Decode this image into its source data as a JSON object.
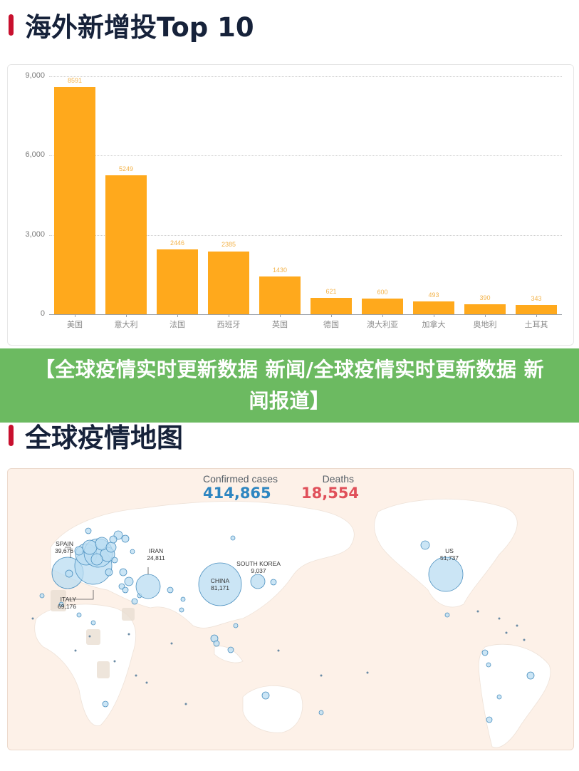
{
  "sections": {
    "top10_title": "海外新增投Top 10",
    "map_title": "全球疫情地图"
  },
  "banner": {
    "text": "【全球疫情实时更新数据 新闻/全球疫情实时更新数据 新闻报道】"
  },
  "chart_data": {
    "type": "bar",
    "title": "海外新增投Top 10",
    "categories": [
      "美国",
      "意大利",
      "法国",
      "西班牙",
      "英国",
      "德国",
      "澳大利亚",
      "加拿大",
      "奥地利",
      "土耳其"
    ],
    "values": [
      8591,
      5249,
      2446,
      2385,
      1430,
      621,
      600,
      493,
      390,
      343
    ],
    "value_labels": [
      "8591",
      "5249",
      "2446",
      "2385",
      "1430",
      "621",
      "600",
      "493",
      "390",
      "343"
    ],
    "xlabel": "",
    "ylabel": "",
    "ylim": [
      0,
      9000
    ],
    "yticks": [
      0,
      3000,
      6000,
      9000
    ],
    "ytick_labels": [
      "0",
      "3,000",
      "6,000",
      "9,000"
    ],
    "grid": true,
    "legend": null,
    "bar_color": "#ffa91c"
  },
  "map": {
    "confirmed_label": "Confirmed cases",
    "confirmed_value": "414,865",
    "deaths_label": "Deaths",
    "deaths_value": "18,554",
    "confirmed_color": "#2e86c1",
    "deaths_color": "#e0505a",
    "callouts": [
      {
        "name": "SPAIN",
        "value": "39,676"
      },
      {
        "name": "ITALY",
        "value": "69,176"
      },
      {
        "name": "IRAN",
        "value": "24,811"
      },
      {
        "name": "CHINA",
        "value": "81,171"
      },
      {
        "name": "SOUTH KOREA",
        "value": "9,037"
      },
      {
        "name": "US",
        "value": "51,737"
      }
    ]
  }
}
